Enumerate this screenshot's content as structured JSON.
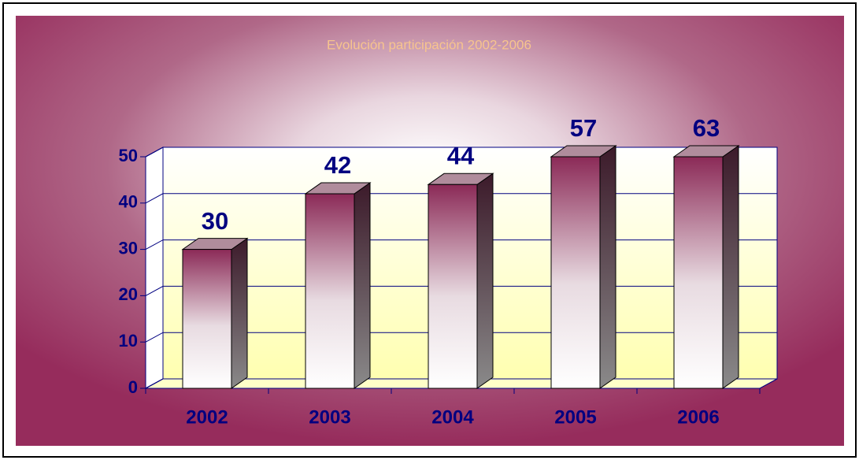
{
  "chart_data": {
    "type": "bar3d",
    "title": "Evolución participación 2002-2006",
    "categories": [
      "2002",
      "2003",
      "2004",
      "2005",
      "2006"
    ],
    "values": [
      30,
      42,
      44,
      57,
      63
    ],
    "color": "#8b2a57",
    "ylim": [
      0,
      50
    ],
    "yticks": [
      0,
      10,
      20,
      30,
      40,
      50
    ],
    "grid": true
  }
}
